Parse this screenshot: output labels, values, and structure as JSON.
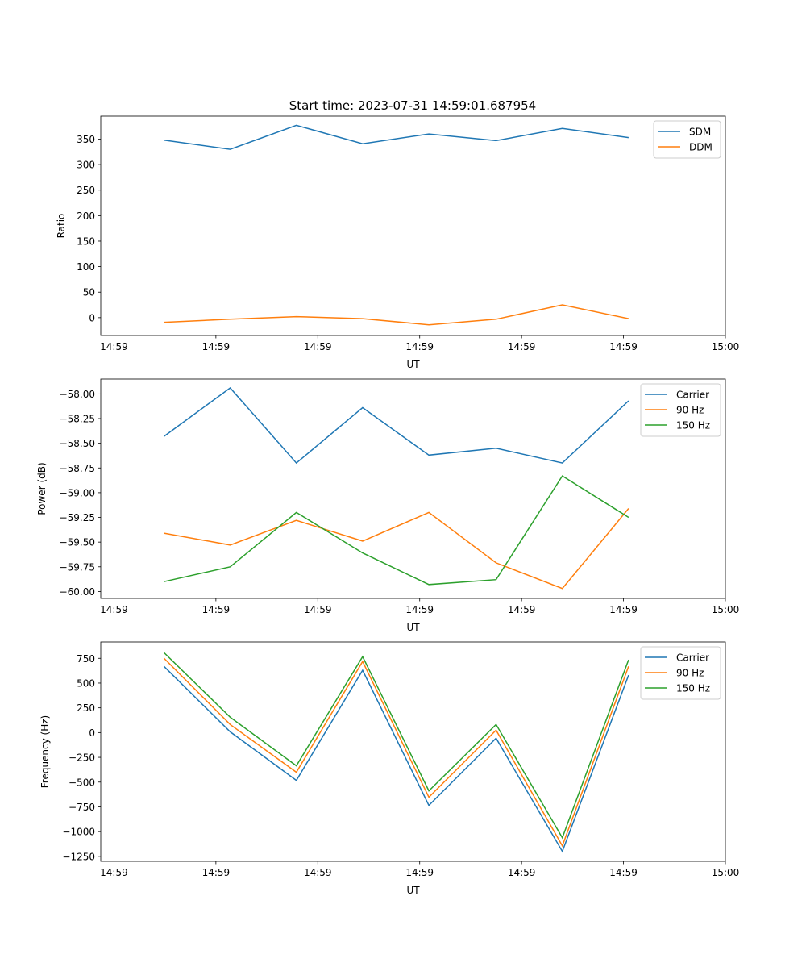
{
  "figure_title": "Start time: 2023-07-31 14:59:01.687954",
  "colors": {
    "c0": "#1f77b4",
    "c1": "#ff7f0e",
    "c2": "#2ca02c"
  },
  "chart_data": [
    {
      "type": "line",
      "title": "Start time: 2023-07-31 14:59:01.687954",
      "xlabel": "UT",
      "ylabel": "Ratio",
      "x_seconds_after_14_59_00": [
        4.9,
        11.4,
        17.9,
        24.4,
        30.9,
        37.5,
        44.0,
        50.5
      ],
      "xlim": [
        -1.3,
        60
      ],
      "xticks": [
        0,
        10,
        20,
        30,
        40,
        50,
        60
      ],
      "xtick_labels": [
        "14:59",
        "14:59",
        "14:59",
        "14:59",
        "14:59",
        "14:59",
        "15:00"
      ],
      "ylim": [
        -35,
        395
      ],
      "yticks": [
        0,
        50,
        100,
        150,
        200,
        250,
        300,
        350
      ],
      "ytick_labels": [
        "0",
        "50",
        "100",
        "150",
        "200",
        "250",
        "300",
        "350"
      ],
      "legend": "top-right",
      "series": [
        {
          "name": "SDM",
          "color": "#1f77b4",
          "values": [
            348,
            330,
            377,
            341,
            360,
            347,
            371,
            353
          ]
        },
        {
          "name": "DDM",
          "color": "#ff7f0e",
          "values": [
            -9,
            -3,
            2,
            -2,
            -14,
            -3,
            25,
            -2
          ]
        }
      ]
    },
    {
      "type": "line",
      "xlabel": "UT",
      "ylabel": "Power (dB)",
      "x_seconds_after_14_59_00": [
        4.9,
        11.4,
        17.9,
        24.4,
        30.9,
        37.5,
        44.0,
        50.5
      ],
      "xlim": [
        -1.3,
        60
      ],
      "xticks": [
        0,
        10,
        20,
        30,
        40,
        50,
        60
      ],
      "xtick_labels": [
        "14:59",
        "14:59",
        "14:59",
        "14:59",
        "14:59",
        "14:59",
        "15:00"
      ],
      "ylim": [
        -60.07,
        -57.85
      ],
      "yticks": [
        -60.0,
        -59.75,
        -59.5,
        -59.25,
        -59.0,
        -58.75,
        -58.5,
        -58.25,
        -58.0
      ],
      "ytick_labels": [
        "−60.00",
        "−59.75",
        "−59.50",
        "−59.25",
        "−59.00",
        "−58.75",
        "−58.50",
        "−58.25",
        "−58.00"
      ],
      "legend": "top-right",
      "series": [
        {
          "name": "Carrier",
          "color": "#1f77b4",
          "values": [
            -58.43,
            -57.94,
            -58.7,
            -58.14,
            -58.62,
            -58.55,
            -58.7,
            -58.07
          ]
        },
        {
          "name": "90 Hz",
          "color": "#ff7f0e",
          "values": [
            -59.41,
            -59.53,
            -59.28,
            -59.49,
            -59.2,
            -59.71,
            -59.97,
            -59.16
          ]
        },
        {
          "name": "150 Hz",
          "color": "#2ca02c",
          "values": [
            -59.9,
            -59.75,
            -59.2,
            -59.61,
            -59.93,
            -59.88,
            -58.83,
            -59.25
          ]
        }
      ]
    },
    {
      "type": "line",
      "xlabel": "UT",
      "ylabel": "Frequency (Hz)",
      "x_seconds_after_14_59_00": [
        4.9,
        11.4,
        17.9,
        24.4,
        30.9,
        37.5,
        44.0,
        50.5
      ],
      "xlim": [
        -1.3,
        60
      ],
      "xticks": [
        0,
        10,
        20,
        30,
        40,
        50,
        60
      ],
      "xtick_labels": [
        "14:59",
        "14:59",
        "14:59",
        "14:59",
        "14:59",
        "14:59",
        "15:00"
      ],
      "ylim": [
        -1300,
        915
      ],
      "yticks": [
        -1250,
        -1000,
        -750,
        -500,
        -250,
        0,
        250,
        500,
        750
      ],
      "ytick_labels": [
        "−1250",
        "−1000",
        "−750",
        "−500",
        "−250",
        "0",
        "250",
        "500",
        "750"
      ],
      "legend": "top-right",
      "series": [
        {
          "name": "Carrier",
          "color": "#1f77b4",
          "values": [
            669,
            8,
            -482,
            629,
            -735,
            -57,
            -1200,
            580
          ]
        },
        {
          "name": "90 Hz",
          "color": "#ff7f0e",
          "values": [
            751,
            82,
            -400,
            718,
            -653,
            24,
            -1143,
            669
          ]
        },
        {
          "name": "150 Hz",
          "color": "#2ca02c",
          "values": [
            808,
            155,
            -335,
            767,
            -588,
            82,
            -1061,
            735
          ]
        }
      ]
    }
  ]
}
